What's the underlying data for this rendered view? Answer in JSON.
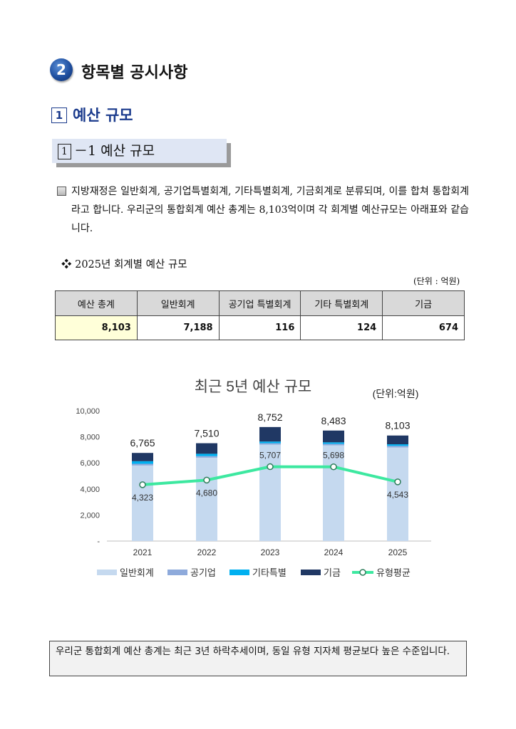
{
  "heading": {
    "badge": "2",
    "title": "항목별 공시사항"
  },
  "subheading": {
    "num": "1",
    "title": "예산 규모"
  },
  "box": {
    "num": "1",
    "title": "－1 예산 규모"
  },
  "paragraph": "지방재정은 일반회계, 공기업특별회계, 기타특별회계, 기금회계로 분류되며, 이를 합쳐 통합회계라고 합니다. 우리군의 통합회계 예산 총계는 8,103억이며 각 회계별 예산규모는 아래표와 같습니다.",
  "table_title": "❖ 2025년 회계별 예산 규모",
  "table_unit": "(단위 : 억원)",
  "table": {
    "headers": [
      "예산 총계",
      "일반회계",
      "공기업 특별회계",
      "기타 특별회계",
      "기금"
    ],
    "values": [
      "8,103",
      "7,188",
      "116",
      "124",
      "674"
    ]
  },
  "chart_data": {
    "type": "bar",
    "title": "최근 5년 예산 규모",
    "unit": "(단위:억원)",
    "categories": [
      "2021",
      "2022",
      "2023",
      "2024",
      "2025"
    ],
    "yticks": [
      "10,000",
      "8,000",
      "6,000",
      "4,000",
      "2,000",
      "-"
    ],
    "ylim": [
      0,
      10000
    ],
    "series": [
      {
        "name": "일반회계",
        "color": "#c5d9ef",
        "values": [
          5800,
          6400,
          7400,
          7350,
          7188
        ]
      },
      {
        "name": "공기업",
        "color": "#8eaadb",
        "values": [
          130,
          120,
          110,
          110,
          116
        ]
      },
      {
        "name": "기타특별",
        "color": "#00b0f0",
        "values": [
          200,
          180,
          130,
          120,
          124
        ]
      },
      {
        "name": "기금",
        "color": "#203864",
        "values": [
          635,
          810,
          1112,
          903,
          674
        ]
      }
    ],
    "totals": [
      "6,765",
      "7,510",
      "8,752",
      "8,483",
      "8,103"
    ],
    "total_values": [
      6765,
      7510,
      8752,
      8483,
      8103
    ],
    "line": {
      "name": "유형평균",
      "color": "#3de8a0",
      "values": [
        4323,
        4680,
        5707,
        5698,
        4543
      ],
      "labels": [
        "4,323",
        "4,680",
        "5,707",
        "5,698",
        "4,543"
      ]
    }
  },
  "note": "우리군 통합회계 예산 총계는 최근 3년 하락추세이며, 동일 유형 지자체 평균보다 높은 수준입니다."
}
